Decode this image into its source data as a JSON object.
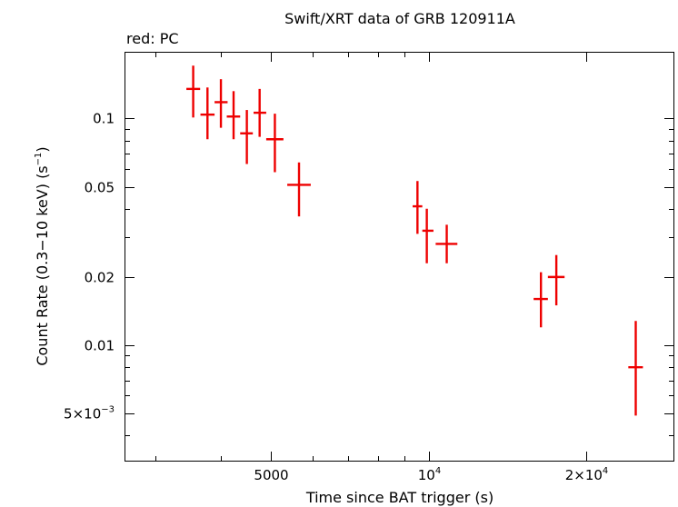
{
  "chart_data": {
    "type": "scatter",
    "title": "Swift/XRT data of GRB 120911A",
    "subtitle": "red: PC",
    "xlabel": "Time since BAT trigger (s)",
    "ylabel": "Count Rate (0.3−10 keV) (s",
    "ylabel_sup": "−1",
    "ylabel_end": ")",
    "x_scale": "log",
    "y_scale": "log",
    "xlim": [
      2630,
      29400
    ],
    "ylim": [
      0.0031,
      0.195
    ],
    "grid": false,
    "color": "#ee0000",
    "x_ticks": [
      {
        "value": 5000,
        "label": "5000"
      },
      {
        "value": 10000,
        "label": "10",
        "sup": "4"
      },
      {
        "value": 20000,
        "label": "2×10",
        "sup": "4"
      }
    ],
    "y_ticks": [
      {
        "value": 0.1,
        "label": "0.1"
      },
      {
        "value": 0.05,
        "label": "0.05"
      },
      {
        "value": 0.02,
        "label": "0.02"
      },
      {
        "value": 0.01,
        "label": "0.01"
      },
      {
        "value": 0.005,
        "label": "5×10",
        "sup": "−3"
      }
    ],
    "series": [
      {
        "points": [
          {
            "x": 3545,
            "x_lo": 3440,
            "x_hi": 3655,
            "y": 0.135,
            "y_lo": 0.101,
            "y_hi": 0.171
          },
          {
            "x": 3775,
            "x_lo": 3660,
            "x_hi": 3895,
            "y": 0.104,
            "y_lo": 0.081,
            "y_hi": 0.137
          },
          {
            "x": 4005,
            "x_lo": 3895,
            "x_hi": 4125,
            "y": 0.118,
            "y_lo": 0.091,
            "y_hi": 0.149
          },
          {
            "x": 4235,
            "x_lo": 4110,
            "x_hi": 4360,
            "y": 0.102,
            "y_lo": 0.081,
            "y_hi": 0.132
          },
          {
            "x": 4490,
            "x_lo": 4360,
            "x_hi": 4610,
            "y": 0.086,
            "y_lo": 0.063,
            "y_hi": 0.109
          },
          {
            "x": 4750,
            "x_lo": 4625,
            "x_hi": 4890,
            "y": 0.106,
            "y_lo": 0.083,
            "y_hi": 0.135
          },
          {
            "x": 5080,
            "x_lo": 4890,
            "x_hi": 5275,
            "y": 0.081,
            "y_lo": 0.058,
            "y_hi": 0.105
          },
          {
            "x": 5650,
            "x_lo": 5365,
            "x_hi": 5950,
            "y": 0.051,
            "y_lo": 0.037,
            "y_hi": 0.064
          },
          {
            "x": 9520,
            "x_lo": 9320,
            "x_hi": 9725,
            "y": 0.041,
            "y_lo": 0.031,
            "y_hi": 0.053
          },
          {
            "x": 9920,
            "x_lo": 9725,
            "x_hi": 10215,
            "y": 0.032,
            "y_lo": 0.023,
            "y_hi": 0.04
          },
          {
            "x": 10830,
            "x_lo": 10315,
            "x_hi": 11350,
            "y": 0.028,
            "y_lo": 0.023,
            "y_hi": 0.034
          },
          {
            "x": 16400,
            "x_lo": 15880,
            "x_hi": 16910,
            "y": 0.016,
            "y_lo": 0.012,
            "y_hi": 0.021
          },
          {
            "x": 17550,
            "x_lo": 16910,
            "x_hi": 18200,
            "y": 0.02,
            "y_lo": 0.015,
            "y_hi": 0.025
          },
          {
            "x": 24900,
            "x_lo": 24100,
            "x_hi": 25700,
            "y": 0.008,
            "y_lo": 0.0049,
            "y_hi": 0.0128
          }
        ]
      }
    ]
  }
}
